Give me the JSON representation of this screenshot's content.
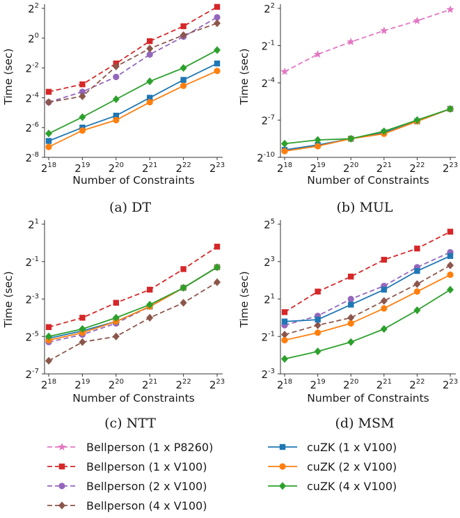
{
  "legend": [
    {
      "name": "Bellperson (1 x P8260)",
      "color": "#e377c2",
      "dash": true,
      "marker": "star"
    },
    {
      "name": "Bellperson (1 x V100)",
      "color": "#d62728",
      "dash": true,
      "marker": "square"
    },
    {
      "name": "Bellperson (2 x V100)",
      "color": "#9467bd",
      "dash": true,
      "marker": "circle"
    },
    {
      "name": "Bellperson (4 x V100)",
      "color": "#8c564b",
      "dash": true,
      "marker": "diamond"
    },
    {
      "name": "cuZK (1 x V100)",
      "color": "#1f77b4",
      "dash": false,
      "marker": "square"
    },
    {
      "name": "cuZK (2 x V100)",
      "color": "#ff7f0e",
      "dash": false,
      "marker": "circle"
    },
    {
      "name": "cuZK (4 x V100)",
      "color": "#2ca02c",
      "dash": false,
      "marker": "diamond"
    }
  ],
  "chart_data": [
    {
      "type": "line",
      "caption": "(a) DT",
      "xlabel": "Number of Constraints",
      "ylabel": "Time (sec)",
      "log_base": 2,
      "x": [
        18,
        19,
        20,
        21,
        22,
        23
      ],
      "x_tick_labels": [
        "2^18",
        "2^19",
        "2^20",
        "2^21",
        "2^22",
        "2^23"
      ],
      "y_ticks": [
        2,
        0,
        -2,
        -4,
        -6,
        -8
      ],
      "y_tick_labels": [
        "2^2",
        "2^0",
        "2^-2",
        "2^-4",
        "2^-6",
        "2^-8"
      ],
      "ylim_log2": [
        -8,
        2
      ],
      "series": [
        {
          "name": "Bellperson (1 x V100)",
          "values_log2": [
            -3.6,
            -3.1,
            -1.7,
            -0.2,
            0.8,
            2.1
          ]
        },
        {
          "name": "Bellperson (2 x V100)",
          "values_log2": [
            -4.3,
            -3.6,
            -2.6,
            -1.1,
            0.1,
            1.4
          ]
        },
        {
          "name": "Bellperson (4 x V100)",
          "values_log2": [
            -4.3,
            -3.9,
            -1.9,
            -0.7,
            0.2,
            1.0
          ]
        },
        {
          "name": "cuZK (1 x V100)",
          "values_log2": [
            -6.9,
            -6.0,
            -5.2,
            -4.0,
            -2.8,
            -1.7
          ]
        },
        {
          "name": "cuZK (2 x V100)",
          "values_log2": [
            -7.3,
            -6.2,
            -5.5,
            -4.3,
            -3.2,
            -2.2
          ]
        },
        {
          "name": "cuZK (4 x V100)",
          "values_log2": [
            -6.4,
            -5.3,
            -4.1,
            -2.9,
            -2.0,
            -0.8
          ]
        }
      ]
    },
    {
      "type": "line",
      "caption": "(b) MUL",
      "xlabel": "Number of Constraints",
      "ylabel": "Time (sec)",
      "log_base": 2,
      "x": [
        18,
        19,
        20,
        21,
        22,
        23
      ],
      "x_tick_labels": [
        "2^18",
        "2^19",
        "2^20",
        "2^21",
        "2^22",
        "2^23"
      ],
      "y_ticks": [
        2,
        -1,
        -4,
        -7,
        -10
      ],
      "y_tick_labels": [
        "2^2",
        "2^-1",
        "2^-4",
        "2^-7",
        "2^-10"
      ],
      "ylim_log2": [
        -10,
        2
      ],
      "series": [
        {
          "name": "Bellperson (1 x P8260)",
          "values_log2": [
            -3.1,
            -1.7,
            -0.7,
            0.2,
            1.0,
            1.9
          ]
        },
        {
          "name": "cuZK (1 x V100)",
          "values_log2": [
            -9.4,
            -9.0,
            -8.5,
            -8.0,
            -7.1,
            -6.1
          ]
        },
        {
          "name": "cuZK (2 x V100)",
          "values_log2": [
            -9.5,
            -9.1,
            -8.5,
            -8.1,
            -7.1,
            -6.1
          ]
        },
        {
          "name": "cuZK (4 x V100)",
          "values_log2": [
            -8.9,
            -8.6,
            -8.5,
            -7.9,
            -7.0,
            -6.1
          ]
        }
      ]
    },
    {
      "type": "line",
      "caption": "(c) NTT",
      "xlabel": "Number of Constraints",
      "ylabel": "Time (sec)",
      "log_base": 2,
      "x": [
        18,
        19,
        20,
        21,
        22,
        23
      ],
      "x_tick_labels": [
        "2^18",
        "2^19",
        "2^20",
        "2^21",
        "2^22",
        "2^23"
      ],
      "y_ticks": [
        1,
        -1,
        -3,
        -5,
        -7
      ],
      "y_tick_labels": [
        "2^1",
        "2^-1",
        "2^-3",
        "2^-5",
        "2^-7"
      ],
      "ylim_log2": [
        -7,
        1
      ],
      "series": [
        {
          "name": "Bellperson (1 x V100)",
          "values_log2": [
            -4.5,
            -4.0,
            -3.2,
            -2.5,
            -1.4,
            -0.2
          ]
        },
        {
          "name": "Bellperson (2 x V100)",
          "values_log2": [
            -5.3,
            -4.9,
            -4.3,
            -3.4,
            -2.4,
            -1.3
          ]
        },
        {
          "name": "Bellperson (4 x V100)",
          "values_log2": [
            -6.3,
            -5.3,
            -5.0,
            -4.0,
            -3.2,
            -2.1
          ]
        },
        {
          "name": "cuZK (1 x V100)",
          "values_log2": [
            -5.1,
            -4.7,
            -4.2,
            -3.4,
            -2.4,
            -1.3
          ]
        },
        {
          "name": "cuZK (2 x V100)",
          "values_log2": [
            -5.2,
            -4.8,
            -4.2,
            -3.4,
            -2.4,
            -1.3
          ]
        },
        {
          "name": "cuZK (4 x V100)",
          "values_log2": [
            -5.0,
            -4.6,
            -4.0,
            -3.3,
            -2.4,
            -1.3
          ]
        }
      ]
    },
    {
      "type": "line",
      "caption": "(d) MSM",
      "xlabel": "Number of Constraints",
      "ylabel": "Time (sec)",
      "log_base": 2,
      "x": [
        18,
        19,
        20,
        21,
        22,
        23
      ],
      "x_tick_labels": [
        "2^18",
        "2^19",
        "2^20",
        "2^21",
        "2^22",
        "2^23"
      ],
      "y_ticks": [
        5,
        3,
        1,
        -1,
        -3
      ],
      "y_tick_labels": [
        "2^5",
        "2^3",
        "2^1",
        "2^-1",
        "2^-3"
      ],
      "ylim_log2": [
        -3,
        5
      ],
      "series": [
        {
          "name": "Bellperson (1 x V100)",
          "values_log2": [
            0.3,
            1.4,
            2.2,
            3.1,
            3.7,
            4.6
          ]
        },
        {
          "name": "Bellperson (2 x V100)",
          "values_log2": [
            -0.4,
            0.1,
            1.0,
            1.7,
            2.7,
            3.5
          ]
        },
        {
          "name": "Bellperson (4 x V100)",
          "values_log2": [
            -0.9,
            -0.4,
            0.0,
            0.9,
            1.8,
            2.8
          ]
        },
        {
          "name": "cuZK (1 x V100)",
          "values_log2": [
            -0.2,
            -0.1,
            0.7,
            1.5,
            2.5,
            3.3
          ]
        },
        {
          "name": "cuZK (2 x V100)",
          "values_log2": [
            -1.2,
            -0.8,
            -0.3,
            0.5,
            1.4,
            2.3
          ]
        },
        {
          "name": "cuZK (4 x V100)",
          "values_log2": [
            -2.2,
            -1.8,
            -1.3,
            -0.6,
            0.4,
            1.5
          ]
        }
      ]
    }
  ]
}
